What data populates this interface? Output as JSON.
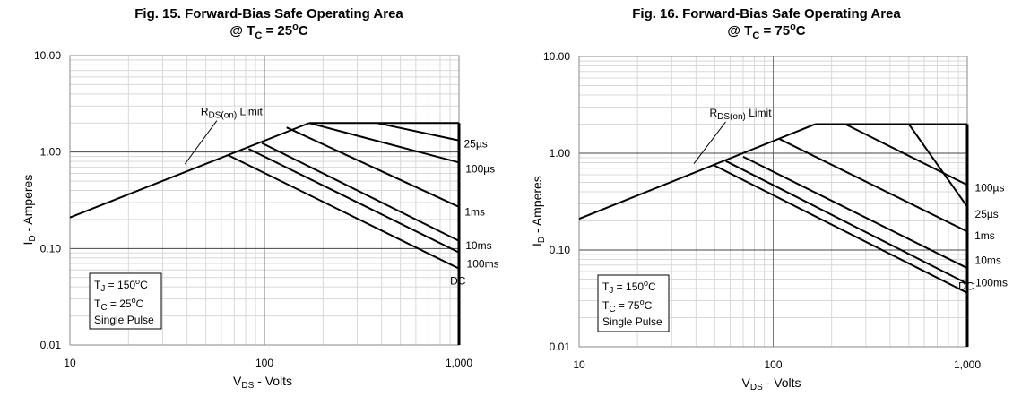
{
  "chart_data": [
    {
      "type": "line",
      "title": "Fig. 15. Forward-Bias Safe Operating Area",
      "subtitle_prefix": "@ T",
      "subtitle_sub": "C",
      "subtitle_value": " = 25",
      "subtitle_deg": "o",
      "subtitle_unit": "C",
      "xlabel_main": "V",
      "xlabel_sub": "DS",
      "xlabel_rest": " - Volts",
      "ylabel_main": "I",
      "ylabel_sub": "D",
      "ylabel_rest": " - Amperes",
      "x_scale": "log",
      "y_scale": "log",
      "xlim": [
        10,
        1000
      ],
      "ylim": [
        0.01,
        10
      ],
      "x_ticks": [
        {
          "v": 10,
          "label": "10"
        },
        {
          "v": 100,
          "label": "100"
        },
        {
          "v": 1000,
          "label": "1,000"
        }
      ],
      "y_ticks": [
        {
          "v": 10,
          "label": "10.00"
        },
        {
          "v": 1,
          "label": "1.00"
        },
        {
          "v": 0.1,
          "label": "0.10"
        },
        {
          "v": 0.01,
          "label": "0.01"
        }
      ],
      "grid": true,
      "current_limit": 2.0,
      "rds_limit": {
        "x": [
          10,
          170
        ],
        "y": [
          0.21,
          2.0
        ],
        "label_main": "R",
        "label_sub": "DS(on)",
        "label_rest": " Limit",
        "label_at": [
          47,
          2.4
        ],
        "arrow_to": [
          39,
          0.75
        ]
      },
      "series": [
        {
          "name": "25µs",
          "x": [
            380,
            1000
          ],
          "y": [
            2.0,
            1.32
          ],
          "label_at": [
            1060,
            1.22
          ]
        },
        {
          "name": "100µs",
          "x": [
            170,
            1000
          ],
          "y": [
            2.0,
            0.78
          ],
          "label_at": [
            1080,
            0.67
          ]
        },
        {
          "name": "1ms",
          "x": [
            130,
            1000
          ],
          "y": [
            1.8,
            0.27
          ],
          "label_at": [
            1070,
            0.24
          ]
        },
        {
          "name": "10ms",
          "x": [
            97,
            1000
          ],
          "y": [
            1.24,
            0.12
          ],
          "label_at": [
            1080,
            0.107
          ]
        },
        {
          "name": "100ms",
          "x": [
            83,
            1000
          ],
          "y": [
            1.08,
            0.091
          ],
          "label_at": [
            1095,
            0.069
          ]
        },
        {
          "name": "DC",
          "x": [
            65,
            1000
          ],
          "y": [
            0.93,
            0.062
          ],
          "label_at": [
            900,
            0.046
          ]
        }
      ],
      "info_box": {
        "line1_main": "T",
        "line1_sub": "J",
        "line1_rest": " = 150",
        "line1_deg": "o",
        "line1_unit": "C",
        "line2_main": "T",
        "line2_sub": "C",
        "line2_rest": " = 25",
        "line2_deg": "o",
        "line2_unit": "C",
        "line3": "Single Pulse"
      }
    },
    {
      "type": "line",
      "title": "Fig. 16. Forward-Bias Safe Operating Area",
      "subtitle_prefix": "@ T",
      "subtitle_sub": "C",
      "subtitle_value": " = 75",
      "subtitle_deg": "o",
      "subtitle_unit": "C",
      "xlabel_main": "V",
      "xlabel_sub": "DS",
      "xlabel_rest": " - Volts",
      "ylabel_main": "I",
      "ylabel_sub": "D",
      "ylabel_rest": " - Amperes",
      "x_scale": "log",
      "y_scale": "log",
      "xlim": [
        10,
        1000
      ],
      "ylim": [
        0.01,
        10
      ],
      "x_ticks": [
        {
          "v": 10,
          "label": "10"
        },
        {
          "v": 100,
          "label": "100"
        },
        {
          "v": 1000,
          "label": "1,000"
        }
      ],
      "y_ticks": [
        {
          "v": 10,
          "label": "10.00"
        },
        {
          "v": 1,
          "label": "1.00"
        },
        {
          "v": 0.1,
          "label": "0.10"
        },
        {
          "v": 0.01,
          "label": "0.01"
        }
      ],
      "grid": true,
      "current_limit": 2.0,
      "rds_limit": {
        "x": [
          10,
          165
        ],
        "y": [
          0.21,
          2.0
        ],
        "label_main": "R",
        "label_sub": "DS(on)",
        "label_rest": " Limit",
        "label_at": [
          47,
          2.4
        ],
        "arrow_to": [
          39,
          0.78
        ]
      },
      "series": [
        {
          "name": "25µs",
          "x": [
            500,
            1000
          ],
          "y": [
            2.0,
            0.28
          ],
          "label_at": [
            1095,
            0.235
          ]
        },
        {
          "name": "100µs",
          "x": [
            235,
            1000
          ],
          "y": [
            2.0,
            0.47
          ],
          "label_at": [
            1095,
            0.44
          ]
        },
        {
          "name": "1ms",
          "x": [
            108,
            1000
          ],
          "y": [
            1.4,
            0.155
          ],
          "label_at": [
            1090,
            0.14
          ]
        },
        {
          "name": "10ms",
          "x": [
            70,
            1000
          ],
          "y": [
            0.92,
            0.065
          ],
          "label_at": [
            1095,
            0.078
          ]
        },
        {
          "name": "100ms",
          "x": [
            57,
            1000
          ],
          "y": [
            0.83,
            0.045
          ],
          "label_at": [
            1100,
            0.046
          ]
        },
        {
          "name": "DC",
          "x": [
            49,
            1000
          ],
          "y": [
            0.76,
            0.036
          ],
          "label_at": [
            900,
            0.042
          ]
        }
      ],
      "info_box": {
        "line1_main": "T",
        "line1_sub": "J",
        "line1_rest": " = 150",
        "line1_deg": "o",
        "line1_unit": "C",
        "line2_main": "T",
        "line2_sub": "C",
        "line2_rest": " = 75",
        "line2_deg": "o",
        "line2_unit": "C",
        "line3": "Single Pulse"
      }
    }
  ]
}
